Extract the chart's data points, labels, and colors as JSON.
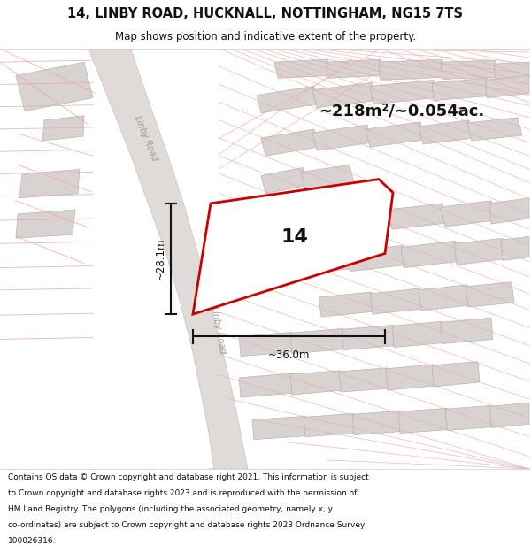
{
  "title_line1": "14, LINBY ROAD, HUCKNALL, NOTTINGHAM, NG15 7TS",
  "title_line2": "Map shows position and indicative extent of the property.",
  "area_text": "~218m²/~0.054ac.",
  "label_number": "14",
  "dim_width": "~36.0m",
  "dim_height": "~28.1m",
  "road_label_upper": "Linby Road",
  "road_label_lower": "Linby Road",
  "footer_lines": [
    "Contains OS data © Crown copyright and database right 2021. This information is subject",
    "to Crown copyright and database rights 2023 and is reproduced with the permission of",
    "HM Land Registry. The polygons (including the associated geometry, namely x, y",
    "co-ordinates) are subject to Crown copyright and database rights 2023 Ordnance Survey",
    "100026316."
  ],
  "map_bg": "#ffffff",
  "building_fill": "#d8d3d0",
  "building_edge": "#b0a8a5",
  "road_fill": "#e0dbd8",
  "road_edge": "#c0b8b4",
  "pink_line": "#e8a8a8",
  "red_outline": "#cc0000",
  "prop_fill": "#ffffff",
  "header_bg": "#ffffff",
  "footer_bg": "#ffffff",
  "road_label_color": "#999994"
}
